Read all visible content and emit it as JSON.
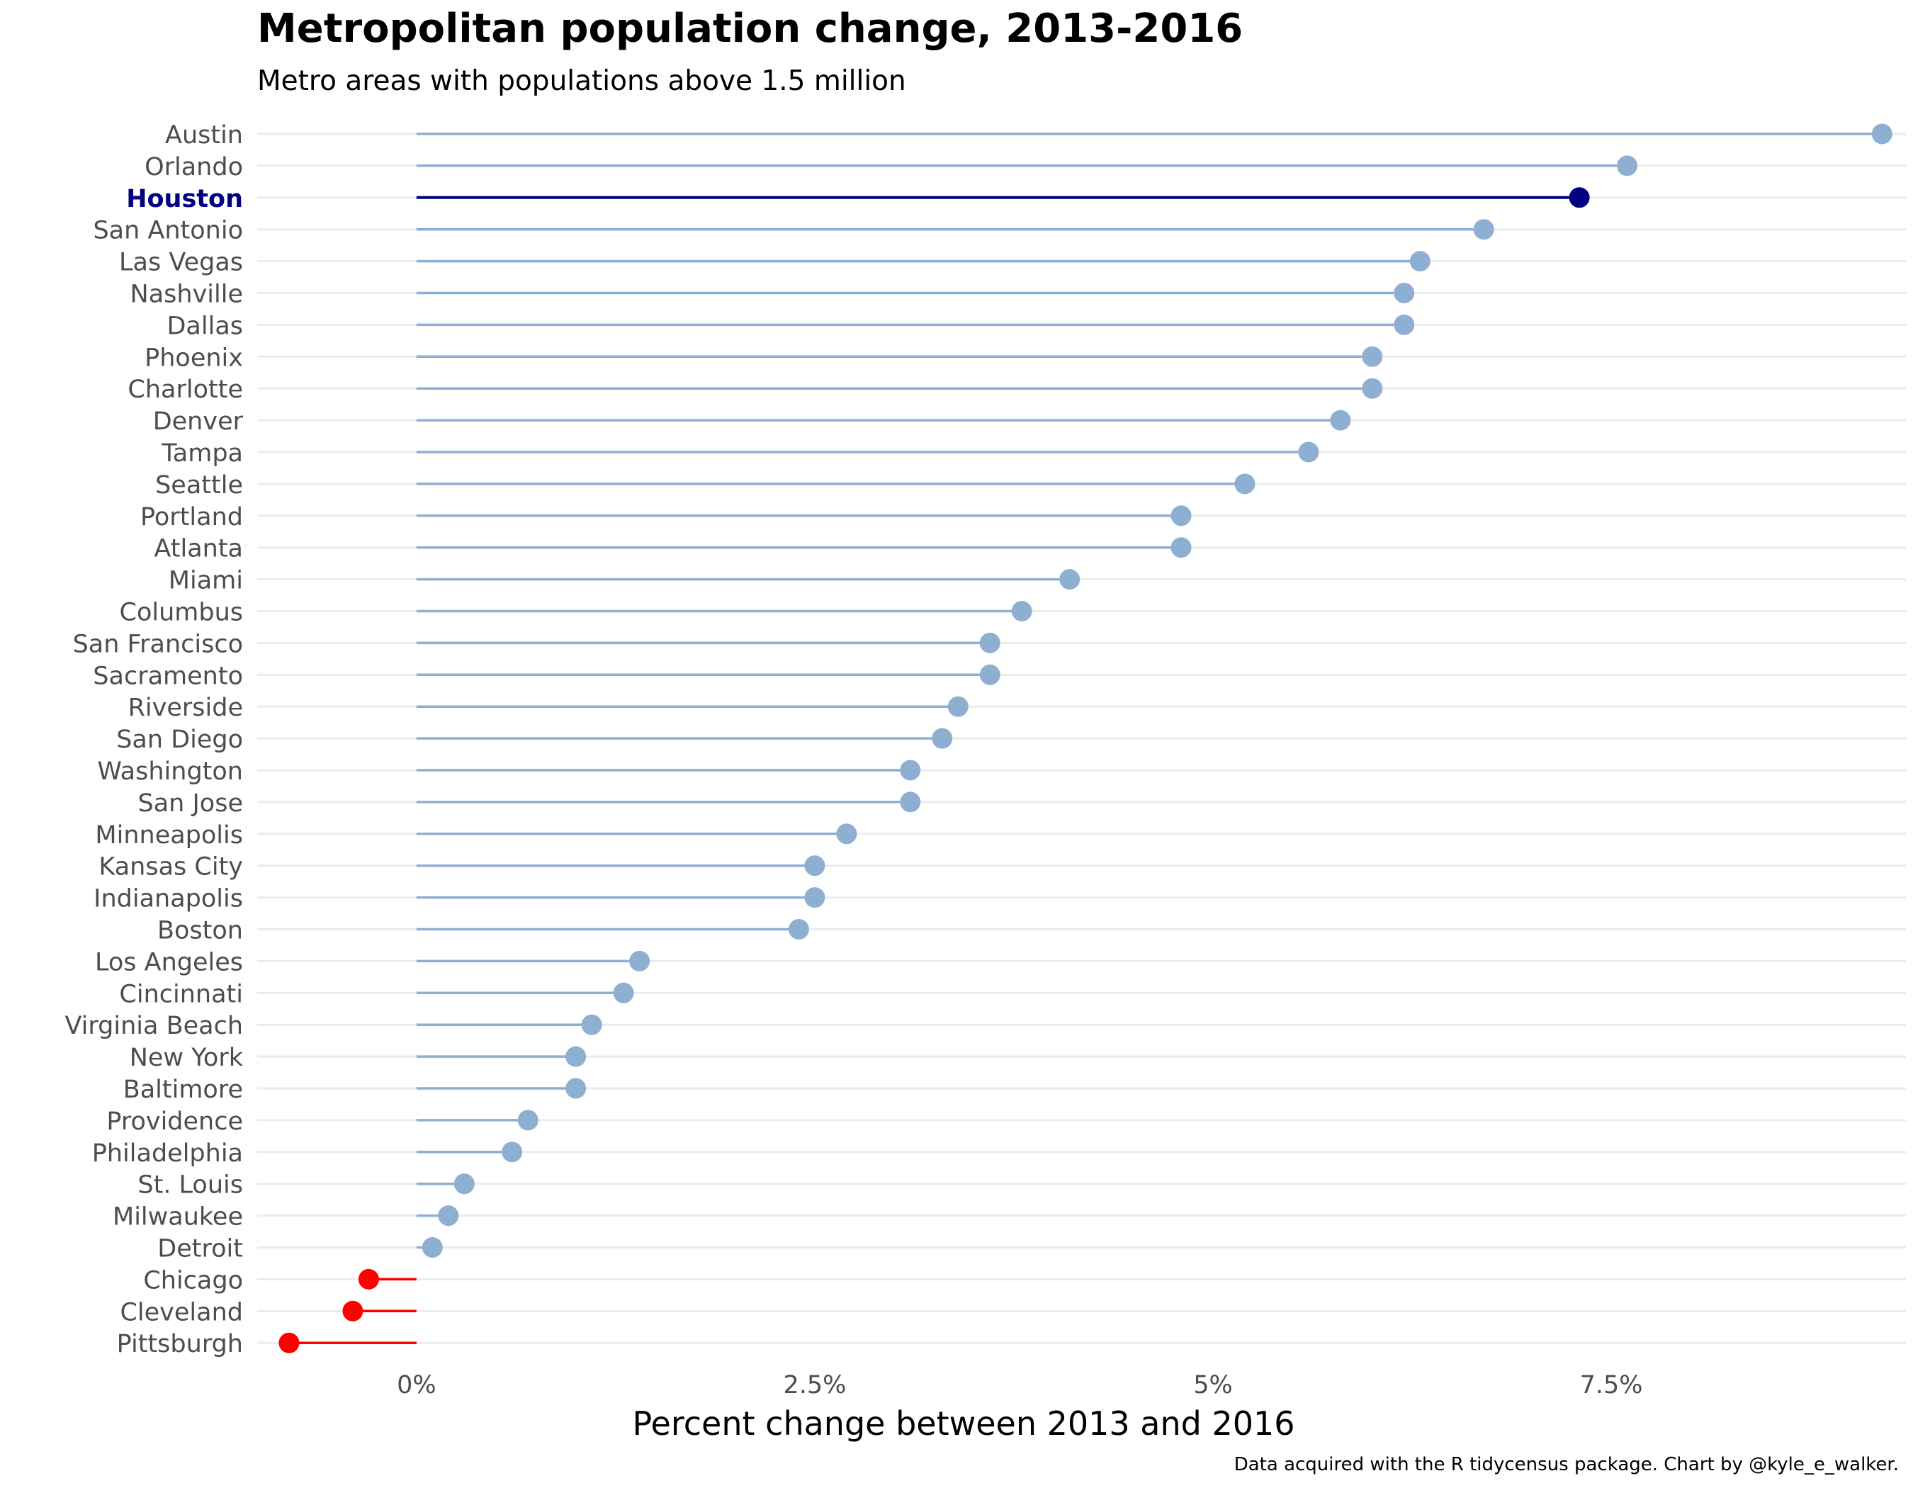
{
  "chart_data": {
    "type": "lollipop",
    "title": "Metropolitan population change, 2013-2016",
    "subtitle": "Metro areas with populations above 1.5 million",
    "xlabel": "Percent change between 2013 and 2016",
    "ylabel": "",
    "caption": "Data acquired with the R tidycensus package. Chart by @kyle_e_walker.",
    "xlim": [
      -1,
      9.35
    ],
    "x_ticks": [
      0,
      2.5,
      5,
      7.5
    ],
    "x_tick_labels": [
      "0%",
      "2.5%",
      "5%",
      "7.5%"
    ],
    "grid": "horizontal",
    "legend": "none",
    "highlight": "Houston",
    "colors": {
      "default": "#8EAFD1",
      "highlight": "#000080",
      "negative": "#FF0000",
      "grid": "#EBEBEB",
      "axis_text": "#4D4D4D"
    },
    "categories": [
      "Austin",
      "Orlando",
      "Houston",
      "San Antonio",
      "Las Vegas",
      "Nashville",
      "Dallas",
      "Phoenix",
      "Charlotte",
      "Denver",
      "Tampa",
      "Seattle",
      "Portland",
      "Atlanta",
      "Miami",
      "Columbus",
      "San Francisco",
      "Sacramento",
      "Riverside",
      "San Diego",
      "Washington",
      "San Jose",
      "Minneapolis",
      "Kansas City",
      "Indianapolis",
      "Boston",
      "Los Angeles",
      "Cincinnati",
      "Virginia Beach",
      "New York",
      "Baltimore",
      "Providence",
      "Philadelphia",
      "St. Louis",
      "Milwaukee",
      "Detroit",
      "Chicago",
      "Cleveland",
      "Pittsburgh"
    ],
    "values": [
      9.2,
      7.6,
      7.3,
      6.7,
      6.3,
      6.2,
      6.2,
      6.0,
      6.0,
      5.8,
      5.6,
      5.2,
      4.8,
      4.8,
      4.1,
      3.8,
      3.6,
      3.6,
      3.4,
      3.3,
      3.1,
      3.1,
      2.7,
      2.5,
      2.5,
      2.4,
      1.4,
      1.3,
      1.1,
      1.0,
      1.0,
      0.7,
      0.6,
      0.3,
      0.2,
      0.1,
      -0.3,
      -0.4,
      -0.8
    ]
  }
}
